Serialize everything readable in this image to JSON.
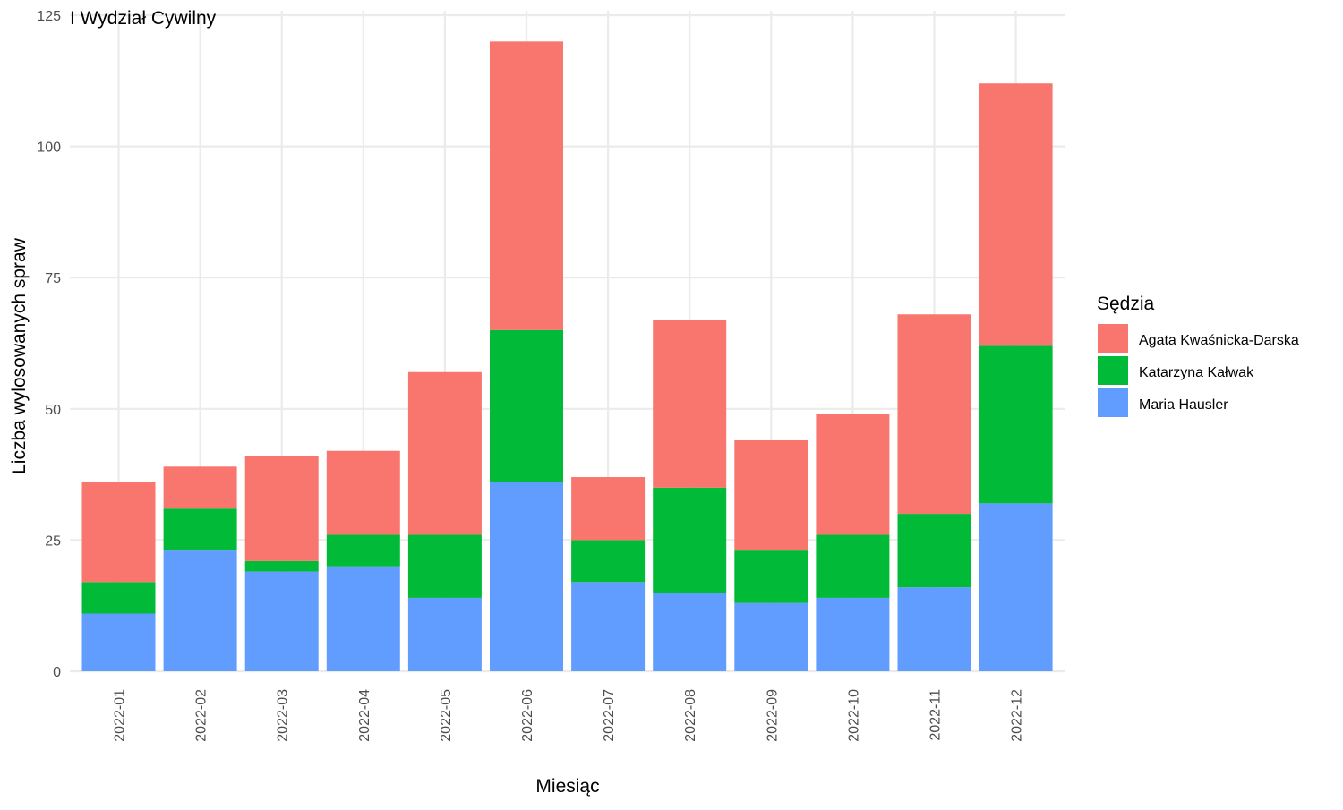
{
  "chart_data": {
    "type": "bar",
    "stacked": true,
    "title": "I Wydział Cywilny",
    "xlabel": "Miesiąc",
    "ylabel": "Liczba wylosowanych spraw",
    "ylim": [
      0,
      125
    ],
    "yticks": [
      0,
      25,
      50,
      75,
      100,
      125
    ],
    "grid": true,
    "legend": {
      "title": "Sędzia",
      "position": "right"
    },
    "categories": [
      "2022-01",
      "2022-02",
      "2022-03",
      "2022-04",
      "2022-05",
      "2022-06",
      "2022-07",
      "2022-08",
      "2022-09",
      "2022-10",
      "2022-11",
      "2022-12"
    ],
    "series": [
      {
        "name": "Agata Kwaśnicka-Darska",
        "color": "#F8766D",
        "values": [
          19,
          8,
          20,
          16,
          31,
          55,
          12,
          32,
          21,
          23,
          38,
          50
        ]
      },
      {
        "name": "Katarzyna Kałwak",
        "color": "#00BA38",
        "values": [
          6,
          8,
          2,
          6,
          12,
          29,
          8,
          20,
          10,
          12,
          14,
          30
        ]
      },
      {
        "name": "Maria Hausler",
        "color": "#619CFF",
        "values": [
          11,
          23,
          19,
          20,
          14,
          36,
          17,
          15,
          13,
          14,
          16,
          32
        ]
      }
    ],
    "stack_order_bottom_to_top": [
      "Maria Hausler",
      "Katarzyna Kałwak",
      "Agata Kwaśnicka-Darska"
    ]
  }
}
